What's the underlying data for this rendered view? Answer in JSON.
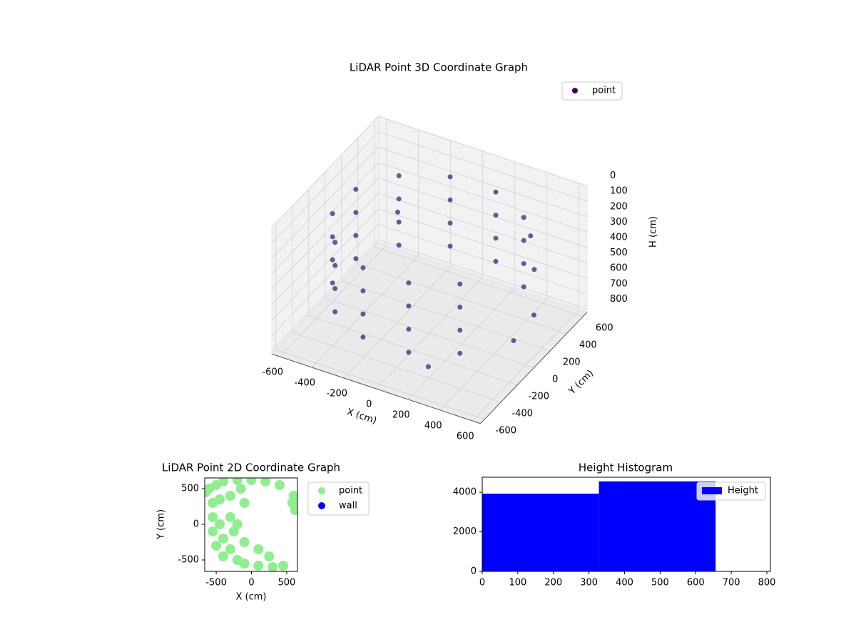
{
  "chart_data": [
    {
      "type": "scatter3d",
      "title": "LiDAR Point 3D Coordinate Graph",
      "xlabel": "X (cm)",
      "ylabel": "Y (cm)",
      "zlabel": "H (cm)",
      "xlim": [
        -650,
        650
      ],
      "ylim": [
        -650,
        650
      ],
      "zlim": [
        0,
        820
      ],
      "z_inverted": true,
      "xticks": [
        -600,
        -400,
        -200,
        0,
        200,
        400,
        600
      ],
      "yticks": [
        -600,
        -400,
        -200,
        0,
        200,
        400,
        600
      ],
      "zticks": [
        0,
        100,
        200,
        300,
        400,
        500,
        600,
        700,
        800
      ],
      "grid": true,
      "legend": "upper right",
      "series": [
        {
          "name": "point",
          "color": "#46327e",
          "legend_color": "#440154",
          "x": [
            389,
            389,
            389,
            389,
            142,
            142,
            142,
            142,
            -142,
            -142,
            -142,
            -142,
            -389,
            -389,
            -389,
            -389,
            -531,
            -531,
            -531,
            -531,
            -531,
            -531,
            -531,
            -531,
            -389,
            -389,
            -389,
            -389,
            -142,
            -142,
            -142,
            -142,
            142,
            142,
            142,
            142,
            389,
            389,
            389,
            389,
            500,
            600,
            550,
            400,
            300,
            -300
          ],
          "y": [
            389,
            389,
            389,
            389,
            531,
            531,
            531,
            531,
            531,
            531,
            531,
            531,
            389,
            389,
            389,
            389,
            142,
            142,
            142,
            142,
            -142,
            -142,
            -142,
            -142,
            -389,
            -389,
            -389,
            -389,
            -531,
            -531,
            -531,
            -531,
            -531,
            -531,
            -531,
            -531,
            -389,
            -389,
            -389,
            -389,
            300,
            100,
            -50,
            450,
            -600,
            200
          ],
          "z": [
            150,
            300,
            450,
            600,
            150,
            300,
            450,
            600,
            150,
            300,
            450,
            600,
            150,
            300,
            450,
            600,
            150,
            300,
            450,
            600,
            150,
            300,
            450,
            600,
            150,
            300,
            450,
            600,
            150,
            300,
            450,
            600,
            150,
            300,
            450,
            600,
            150,
            300,
            450,
            600,
            400,
            550,
            650,
            300,
            600,
            250
          ]
        }
      ]
    },
    {
      "type": "scatter",
      "title": "LiDAR Point 2D Coordinate Graph",
      "xlabel": "X (cm)",
      "ylabel": "Y (cm)",
      "xlim": [
        -663,
        653
      ],
      "ylim": [
        -660,
        650
      ],
      "xticks": [
        -500,
        0,
        500
      ],
      "yticks": [
        -500,
        0,
        500
      ],
      "legend": "outside right",
      "series": [
        {
          "name": "point",
          "color": "#90ee90",
          "x": [
            -600,
            -500,
            -400,
            -200,
            0,
            200,
            400,
            -550,
            -450,
            -300,
            -100,
            -550,
            -450,
            -550,
            -400,
            -500,
            -300,
            -400,
            -200,
            -100,
            100,
            300,
            450,
            -250,
            -100,
            100,
            250,
            -300,
            -200,
            -150,
            600,
            620,
            580,
            -650
          ],
          "y": [
            500,
            550,
            600,
            620,
            620,
            600,
            550,
            300,
            350,
            400,
            300,
            100,
            0,
            -100,
            -200,
            -300,
            -350,
            -450,
            -500,
            -550,
            -580,
            -600,
            -580,
            -100,
            -250,
            -350,
            -450,
            100,
            0,
            500,
            400,
            200,
            300,
            450
          ]
        },
        {
          "name": "wall",
          "color": "#0000ff",
          "x": [],
          "y": []
        }
      ]
    },
    {
      "type": "histogram",
      "title": "Height Histogram",
      "xlim": [
        0,
        810
      ],
      "ylim": [
        0,
        4760
      ],
      "xticks": [
        0,
        100,
        200,
        300,
        400,
        500,
        600,
        700,
        800
      ],
      "yticks": [
        0,
        2000,
        4000
      ],
      "legend": "upper right",
      "bins": [
        0,
        328,
        656
      ],
      "series": [
        {
          "name": "Height",
          "color": "#0000ff",
          "values": [
            3930,
            4550
          ]
        }
      ]
    }
  ]
}
